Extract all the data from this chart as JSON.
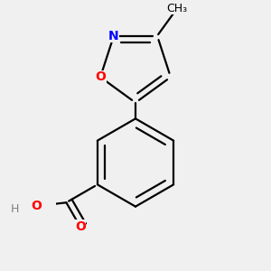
{
  "background_color": "#f0f0f0",
  "atom_colors": {
    "C": "#000000",
    "H": "#808080",
    "O": "#ff0000",
    "N": "#0000ff"
  },
  "bond_color": "#000000",
  "bond_width": 1.6,
  "font_size_atoms": 10,
  "font_size_methyl": 9,
  "font_size_H": 9
}
